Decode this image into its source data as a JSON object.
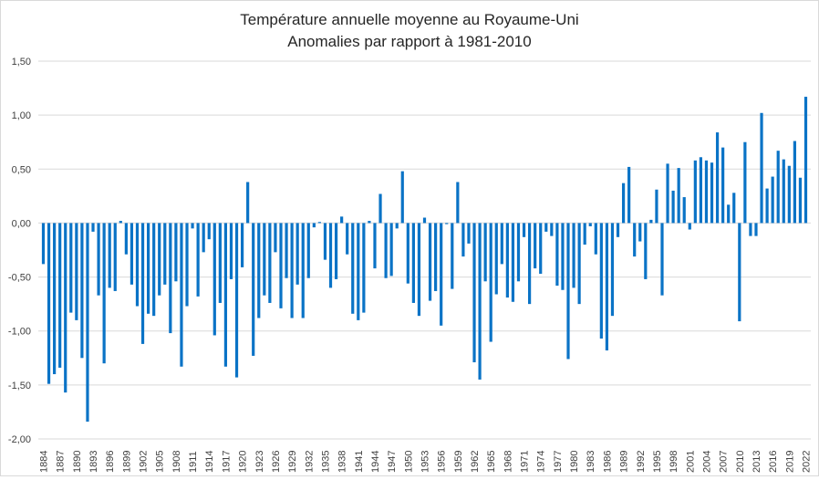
{
  "chart_data": {
    "type": "bar",
    "title": "Température annuelle moyenne au Royaume-Uni",
    "subtitle": "Anomalies par rapport à 1981-2010",
    "xlabel": "",
    "ylabel": "",
    "ylim": [
      -2.0,
      1.5
    ],
    "yticks": [
      "-2,00",
      "-1,50",
      "-1,00",
      "-0,50",
      "0,00",
      "0,50",
      "1,00",
      "1,50"
    ],
    "ytick_values": [
      -2.0,
      -1.5,
      -1.0,
      -0.5,
      0.0,
      0.5,
      1.0,
      1.5
    ],
    "xtick_step": 3,
    "grid": true,
    "legend": "none",
    "bar_color": "#0A73C6",
    "start_year": 1884,
    "values": [
      -0.38,
      -1.49,
      -1.4,
      -1.34,
      -1.57,
      -0.83,
      -0.9,
      -1.25,
      -1.84,
      -0.08,
      -0.67,
      -1.3,
      -0.6,
      -0.63,
      0.02,
      -0.29,
      -0.57,
      -0.77,
      -1.12,
      -0.84,
      -0.86,
      -0.67,
      -0.57,
      -1.02,
      -0.54,
      -1.33,
      -0.77,
      -0.05,
      -0.68,
      -0.27,
      -0.15,
      -1.04,
      -0.74,
      -1.33,
      -0.52,
      -1.43,
      -0.41,
      0.38,
      -1.23,
      -0.88,
      -0.67,
      -0.74,
      -0.27,
      -0.79,
      -0.51,
      -0.88,
      -0.57,
      -0.88,
      -0.51,
      -0.04,
      0.01,
      -0.34,
      -0.6,
      -0.52,
      0.06,
      -0.29,
      -0.84,
      -0.9,
      -0.83,
      0.02,
      -0.42,
      0.27,
      -0.51,
      -0.49,
      -0.05,
      0.48,
      -0.56,
      -0.74,
      -0.86,
      0.05,
      -0.72,
      -0.63,
      -0.95,
      -0.01,
      -0.61,
      0.38,
      -0.31,
      -0.19,
      -1.29,
      -1.45,
      -0.54,
      -1.1,
      -0.66,
      -0.38,
      -0.69,
      -0.73,
      -0.54,
      -0.13,
      -0.75,
      -0.42,
      -0.47,
      -0.08,
      -0.12,
      -0.58,
      -0.62,
      -1.26,
      -0.6,
      -0.75,
      -0.2,
      -0.03,
      -0.29,
      -1.07,
      -1.18,
      -0.86,
      -0.13,
      0.37,
      0.52,
      -0.31,
      -0.17,
      -0.52,
      0.03,
      0.31,
      -0.67,
      0.55,
      0.3,
      0.51,
      0.24,
      -0.06,
      0.58,
      0.61,
      0.58,
      0.56,
      0.84,
      0.7,
      0.17,
      0.28,
      -0.91,
      0.75,
      -0.12,
      -0.12,
      1.02,
      0.32,
      0.43,
      0.67,
      0.59,
      0.53,
      0.76,
      0.42,
      1.17
    ]
  }
}
